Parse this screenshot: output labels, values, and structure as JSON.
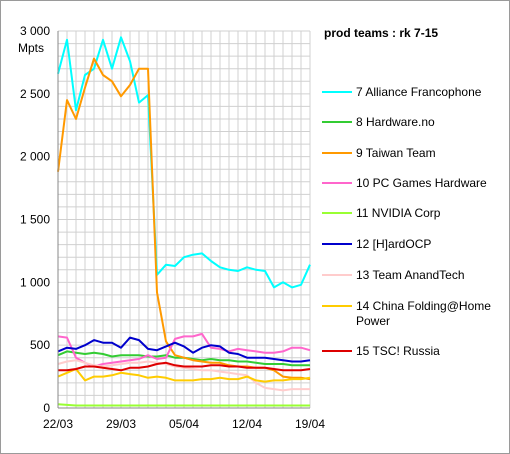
{
  "chart_data": {
    "type": "line",
    "title": "prod teams :  rk 7-15",
    "ylabel": "Mpts",
    "ylim": [
      0,
      3000
    ],
    "yticks": [
      0,
      500,
      1000,
      1500,
      2000,
      2500,
      3000
    ],
    "ytick_labels": [
      "0",
      "500",
      "1 000",
      "1 500",
      "2 000",
      "2 500",
      "3 000"
    ],
    "xlim": [
      0,
      28
    ],
    "x": [
      0,
      1,
      2,
      3,
      4,
      5,
      6,
      7,
      8,
      9,
      10,
      11,
      12,
      13,
      14,
      15,
      16,
      17,
      18,
      19,
      20,
      21,
      22,
      23,
      24,
      25,
      26,
      27,
      28
    ],
    "xticks": [
      0,
      7,
      14,
      21,
      28
    ],
    "xtick_labels": [
      "22/03",
      "29/03",
      "05/04",
      "12/04",
      "19/04"
    ],
    "grid": true,
    "legend_position": "right",
    "series": [
      {
        "name": "7 Alliance Francophone",
        "color": "#00ffff",
        "values": [
          2660,
          2930,
          2370,
          2650,
          2700,
          2930,
          2700,
          2950,
          2760,
          2430,
          2490,
          1060,
          1140,
          1130,
          1200,
          1220,
          1230,
          1170,
          1120,
          1100,
          1090,
          1120,
          1100,
          1090,
          960,
          1000,
          960,
          980,
          1140
        ]
      },
      {
        "name": "8 Hardware.no",
        "color": "#33cc33",
        "values": [
          420,
          450,
          440,
          430,
          440,
          430,
          410,
          420,
          420,
          420,
          410,
          410,
          420,
          400,
          400,
          390,
          380,
          390,
          380,
          380,
          370,
          370,
          360,
          350,
          350,
          350,
          340,
          340,
          340
        ]
      },
      {
        "name": "9 Taiwan Team",
        "color": "#ff9900",
        "values": [
          1880,
          2450,
          2300,
          2550,
          2780,
          2650,
          2600,
          2480,
          2570,
          2700,
          2700,
          920,
          530,
          420,
          400,
          380,
          370,
          360,
          360,
          340,
          330,
          330,
          320,
          320,
          300,
          250,
          240,
          240,
          230
        ]
      },
      {
        "name": "10 PC Games Hardware",
        "color": "#ff66cc",
        "values": [
          570,
          560,
          400,
          360,
          330,
          350,
          360,
          370,
          380,
          390,
          420,
          390,
          400,
          550,
          570,
          570,
          590,
          480,
          470,
          450,
          470,
          460,
          450,
          440,
          440,
          450,
          480,
          480,
          460
        ]
      },
      {
        "name": "11 NVIDIA Corp",
        "color": "#99ff33",
        "values": [
          30,
          25,
          20,
          20,
          20,
          20,
          20,
          20,
          20,
          20,
          20,
          20,
          20,
          20,
          20,
          20,
          20,
          20,
          20,
          20,
          20,
          20,
          20,
          20,
          20,
          20,
          20,
          20,
          20
        ]
      },
      {
        "name": "12 [H]ardOCP",
        "color": "#0000cc",
        "values": [
          450,
          480,
          470,
          500,
          540,
          520,
          520,
          480,
          560,
          540,
          470,
          460,
          490,
          520,
          490,
          440,
          480,
          500,
          490,
          440,
          430,
          400,
          400,
          400,
          390,
          380,
          370,
          370,
          380
        ]
      },
      {
        "name": "13 Team AnandTech",
        "color": "#ffcccc",
        "values": [
          350,
          370,
          380,
          360,
          340,
          330,
          340,
          350,
          360,
          360,
          370,
          360,
          350,
          330,
          320,
          310,
          300,
          300,
          290,
          280,
          270,
          260,
          200,
          160,
          150,
          140,
          150,
          150,
          150
        ]
      },
      {
        "name": "14 China Folding@Home Power",
        "color": "#ffcc00",
        "values": [
          250,
          280,
          310,
          220,
          250,
          250,
          260,
          280,
          270,
          260,
          240,
          250,
          240,
          220,
          220,
          220,
          230,
          230,
          240,
          230,
          230,
          250,
          220,
          210,
          220,
          220,
          230,
          230,
          240
        ]
      },
      {
        "name": "15 TSC! Russia",
        "color": "#dd0000",
        "values": [
          300,
          300,
          310,
          330,
          330,
          320,
          310,
          300,
          320,
          320,
          330,
          350,
          360,
          340,
          330,
          330,
          330,
          340,
          340,
          330,
          330,
          320,
          320,
          320,
          310,
          300,
          300,
          300,
          310
        ]
      }
    ]
  }
}
